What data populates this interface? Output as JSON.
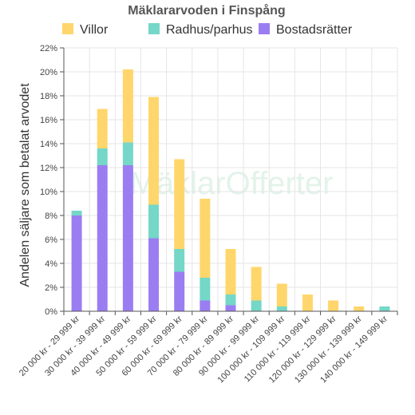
{
  "colors": {
    "Villor": "#ffd66b",
    "Radhus/parhus": "#74d7c8",
    "Bostadsrätter": "#9b7df2",
    "grid": "#e6e6e6",
    "axis": "#555555",
    "watermark": "#dff2e7"
  },
  "watermark_text": "MäklarOfferter",
  "chart_data": {
    "type": "bar",
    "stacked": true,
    "title": "Mäklararvoden i Finspång",
    "ylabel": "Andelen säljare som betalat arvodet",
    "xlabel": "",
    "ylim": [
      0,
      22
    ],
    "yticks": [
      0,
      2,
      4,
      6,
      8,
      10,
      12,
      14,
      16,
      18,
      20,
      22
    ],
    "ytick_labels": [
      "0%",
      "2%",
      "4%",
      "6%",
      "8%",
      "10%",
      "12%",
      "14%",
      "16%",
      "18%",
      "20%",
      "22%"
    ],
    "grid": true,
    "legend": "top",
    "categories": [
      "20 000 kr - 29 999 kr",
      "30 000 kr - 39 999 kr",
      "40 000 kr - 49 999 kr",
      "50 000 kr - 59 999 kr",
      "60 000 kr - 69 999 kr",
      "70 000 kr - 79 999 kr",
      "80 000 kr - 89 999 kr",
      "90 000 kr - 99 999 kr",
      "100 000 kr - 109 999 kr",
      "110 000 kr - 119 999 kr",
      "120 000 kr - 129 999 kr",
      "130 000 kr - 139 999 kr",
      "140 000 kr - 149 999 kr"
    ],
    "series": [
      {
        "name": "Villor",
        "values": [
          0,
          3.3,
          6.1,
          9.0,
          7.5,
          6.6,
          3.8,
          2.8,
          1.9,
          1.4,
          0.9,
          0.4,
          0
        ]
      },
      {
        "name": "Radhus/parhus",
        "values": [
          0.4,
          1.4,
          1.9,
          2.8,
          1.9,
          1.9,
          0.9,
          0.9,
          0.4,
          0,
          0,
          0,
          0.4
        ]
      },
      {
        "name": "Bostadsrätter",
        "values": [
          8.0,
          12.2,
          12.2,
          6.1,
          3.3,
          0.9,
          0.5,
          0,
          0,
          0,
          0,
          0,
          0
        ]
      }
    ]
  }
}
